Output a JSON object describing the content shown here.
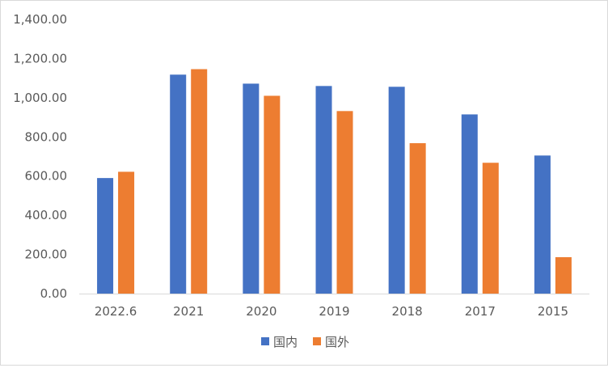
{
  "chart_data": {
    "type": "bar",
    "categories": [
      "2022.6",
      "2021",
      "2020",
      "2019",
      "2018",
      "2017",
      "2015"
    ],
    "series": [
      {
        "name": "国内",
        "color": "#4472C4",
        "values": [
          590,
          1118,
          1072,
          1060,
          1056,
          915,
          705
        ]
      },
      {
        "name": "国外",
        "color": "#ED7D31",
        "values": [
          622,
          1146,
          1010,
          932,
          768,
          668,
          186
        ]
      }
    ],
    "y_ticks": [
      "0.00",
      "200.00",
      "400.00",
      "600.00",
      "800.00",
      "1,000.00",
      "1,200.00",
      "1,400.00"
    ],
    "ylim": [
      0,
      1400
    ],
    "grid": false,
    "legend_position": "bottom"
  }
}
